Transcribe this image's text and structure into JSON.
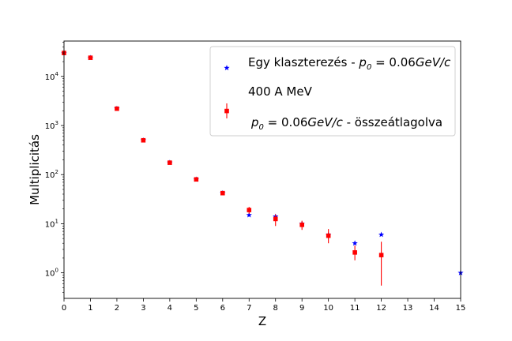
{
  "chart_data": {
    "type": "scatter",
    "xlabel": "Z",
    "ylabel": "Multiplicitás",
    "xlim": [
      0,
      15
    ],
    "ylim_log10": [
      -0.52,
      4.72
    ],
    "yscale": "log",
    "x_ticks": [
      "0",
      "1",
      "2",
      "3",
      "4",
      "5",
      "6",
      "7",
      "8",
      "9",
      "10",
      "11",
      "12",
      "13",
      "14",
      "15"
    ],
    "y_ticks": [
      {
        "base": "10",
        "exp": "0",
        "value": 1
      },
      {
        "base": "10",
        "exp": "1",
        "value": 10
      },
      {
        "base": "10",
        "exp": "2",
        "value": 100
      },
      {
        "base": "10",
        "exp": "3",
        "value": 1000
      },
      {
        "base": "10",
        "exp": "4",
        "value": 10000
      }
    ],
    "grid": false,
    "legend_position": "upper-right",
    "legend_note": "400 A MeV",
    "series": [
      {
        "name": "Egy klaszterezés - p0 = 0.06GeV/c",
        "legend_prefix": "Egy klaszterezés - ",
        "marker": "star",
        "color": "#0000ff",
        "x": [
          0,
          1,
          2,
          3,
          4,
          5,
          6,
          7,
          8,
          9,
          10,
          11,
          12,
          15
        ],
        "y": [
          30000,
          24000,
          2200,
          500,
          175,
          80,
          42,
          15,
          14,
          10,
          6,
          4,
          6,
          1
        ]
      },
      {
        "name": "p0 = 0.06GeV/c - összeátlagolva",
        "legend_suffix": " - összeátlagolva",
        "marker": "square-errorbar",
        "color": "#ff0000",
        "x": [
          0,
          1,
          2,
          3,
          4,
          5,
          6,
          7,
          8,
          9,
          10,
          11,
          12
        ],
        "y": [
          30000,
          24000,
          2200,
          500,
          175,
          80,
          42,
          19,
          12.5,
          9.5,
          5.7,
          2.6,
          2.3
        ],
        "err_low": [
          29000,
          23000,
          2050,
          460,
          160,
          73,
          38,
          16,
          9,
          7.5,
          4,
          1.8,
          0.55
        ],
        "err_high": [
          31000,
          25000,
          2350,
          540,
          190,
          87,
          46,
          22,
          15.5,
          11.5,
          7.8,
          3.6,
          4.3
        ]
      }
    ]
  }
}
